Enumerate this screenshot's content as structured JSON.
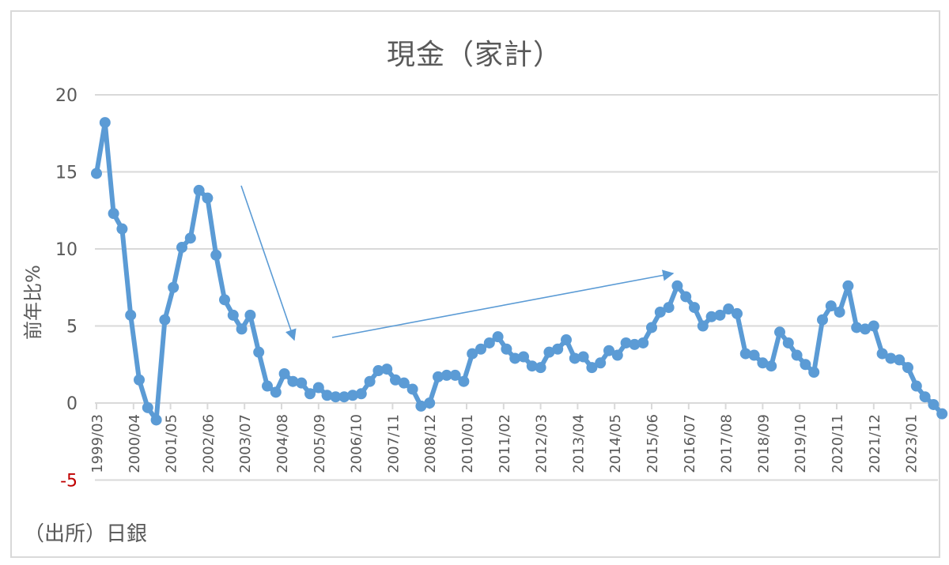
{
  "chart_data": {
    "type": "line",
    "title": "現金（家計）",
    "xlabel": "",
    "ylabel": "前年比%",
    "source_note": "（出所）日銀",
    "ylim": [
      -5,
      20
    ],
    "yticks": [
      20,
      15,
      10,
      5,
      0,
      -5
    ],
    "grid": true,
    "legend": "none",
    "x_tick_labels": [
      "1999/03",
      "2000/04",
      "2001/05",
      "2002/06",
      "2003/07",
      "2004/08",
      "2005/09",
      "2006/10",
      "2007/11",
      "2008/12",
      "2010/01",
      "2011/02",
      "2012/03",
      "2013/04",
      "2014/05",
      "2015/06",
      "2016/07",
      "2017/08",
      "2018/09",
      "2019/10",
      "2020/11",
      "2021/12",
      "2023/01"
    ],
    "x": [
      "1999/03",
      "1999/06",
      "1999/09",
      "1999/12",
      "2000/03",
      "2000/06",
      "2000/09",
      "2000/12",
      "2001/03",
      "2001/06",
      "2001/09",
      "2001/12",
      "2002/03",
      "2002/06",
      "2002/09",
      "2002/12",
      "2003/03",
      "2003/06",
      "2003/09",
      "2003/12",
      "2004/03",
      "2004/06",
      "2004/09",
      "2004/12",
      "2005/03",
      "2005/06",
      "2005/09",
      "2005/12",
      "2006/03",
      "2006/06",
      "2006/09",
      "2006/12",
      "2007/03",
      "2007/06",
      "2007/09",
      "2007/12",
      "2008/03",
      "2008/06",
      "2008/09",
      "2008/12",
      "2009/03",
      "2009/06",
      "2009/09",
      "2009/12",
      "2010/03",
      "2010/06",
      "2010/09",
      "2010/12",
      "2011/03",
      "2011/06",
      "2011/09",
      "2011/12",
      "2012/03",
      "2012/06",
      "2012/09",
      "2012/12",
      "2013/03",
      "2013/06",
      "2013/09",
      "2013/12",
      "2014/03",
      "2014/06",
      "2014/09",
      "2014/12",
      "2015/03",
      "2015/06",
      "2015/09",
      "2015/12",
      "2016/03",
      "2016/06",
      "2016/09",
      "2016/12",
      "2017/03",
      "2017/06",
      "2017/09",
      "2017/12",
      "2018/03",
      "2018/06",
      "2018/09",
      "2018/12",
      "2019/03",
      "2019/06",
      "2019/09",
      "2019/12",
      "2020/03",
      "2020/06",
      "2020/09",
      "2020/12",
      "2021/03",
      "2021/06",
      "2021/09",
      "2021/12",
      "2022/03",
      "2022/06",
      "2022/09",
      "2022/12",
      "2023/03",
      "2023/06",
      "2023/09",
      "2023/12"
    ],
    "series": [
      {
        "name": "現金（家計）前年比",
        "color": "#5b9bd5",
        "values": [
          14.9,
          18.2,
          12.3,
          11.3,
          5.7,
          1.5,
          -0.3,
          -1.1,
          5.4,
          7.5,
          10.1,
          10.7,
          13.8,
          13.3,
          9.6,
          6.7,
          5.7,
          4.8,
          5.7,
          3.3,
          1.1,
          0.7,
          1.9,
          1.4,
          1.3,
          0.6,
          1.0,
          0.5,
          0.4,
          0.4,
          0.5,
          0.6,
          1.4,
          2.1,
          2.2,
          1.5,
          1.3,
          0.9,
          -0.2,
          0.0,
          1.7,
          1.8,
          1.8,
          1.4,
          3.2,
          3.5,
          3.9,
          4.3,
          3.5,
          2.9,
          3.0,
          2.4,
          2.3,
          3.3,
          3.5,
          4.1,
          2.9,
          3.0,
          2.3,
          2.6,
          3.4,
          3.1,
          3.9,
          3.8,
          3.9,
          4.9,
          5.9,
          6.2,
          7.6,
          6.9,
          6.2,
          5.0,
          5.6,
          5.7,
          6.1,
          5.8,
          3.2,
          3.1,
          2.6,
          2.4,
          4.6,
          3.9,
          3.1,
          2.5,
          2.0,
          5.4,
          6.3,
          5.9,
          7.6,
          4.9,
          4.8,
          5.0,
          3.2,
          2.9,
          2.8,
          2.3,
          1.1,
          0.4,
          -0.1,
          -0.7
        ]
      }
    ],
    "annotations": [
      {
        "type": "arrow",
        "desc": "decline trend",
        "from": [
          305,
          235
        ],
        "to": [
          372,
          430
        ]
      },
      {
        "type": "arrow",
        "desc": "rise trend",
        "from": [
          420,
          427
        ],
        "to": [
          851,
          346
        ]
      }
    ]
  },
  "colors": {
    "line": "#5b9bd5",
    "grid": "#d9d9d9",
    "text": "#595959",
    "negative_tick": "#c00000",
    "arrow": "#5b9bd5"
  }
}
